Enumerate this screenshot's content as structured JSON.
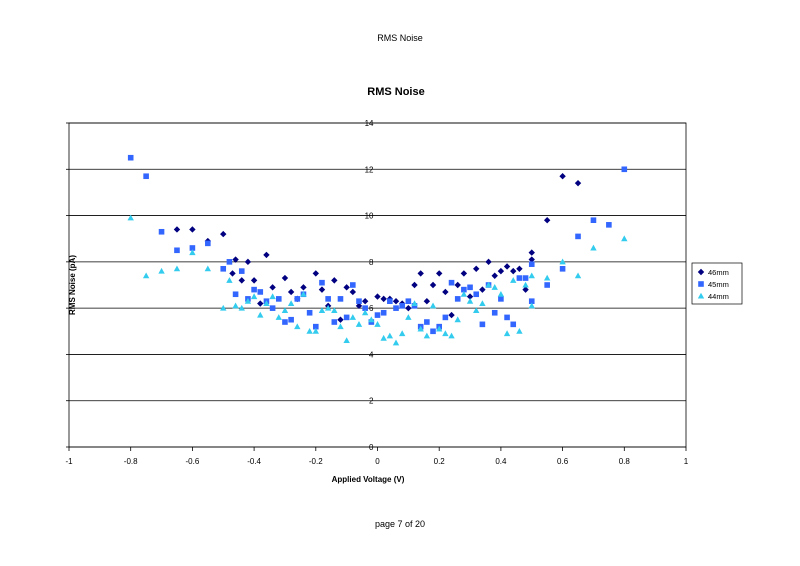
{
  "page": {
    "header": "RMS Noise",
    "footer": "page 7 of 20"
  },
  "chart_data": {
    "type": "scatter",
    "title": "RMS Noise",
    "xlabel": "Applied Voltage (V)",
    "ylabel": "RMS Noise (pA)",
    "xlim": [
      -1,
      1
    ],
    "ylim": [
      0,
      14
    ],
    "xticks": [
      "-1",
      "-0.8",
      "-0.6",
      "-0.4",
      "-0.2",
      "0",
      "0.2",
      "0.4",
      "0.6",
      "0.8",
      "1"
    ],
    "yticks": [
      "0",
      "2",
      "4",
      "6",
      "8",
      "10",
      "12",
      "14"
    ],
    "grid": "horizontal",
    "legend": "right",
    "series": [
      {
        "name": "46mm",
        "marker": "diamond",
        "color": "#000080",
        "points": [
          [
            -0.65,
            9.4
          ],
          [
            -0.6,
            9.4
          ],
          [
            -0.55,
            8.9
          ],
          [
            -0.5,
            9.2
          ],
          [
            -0.46,
            8.1
          ],
          [
            -0.47,
            7.5
          ],
          [
            -0.44,
            7.2
          ],
          [
            -0.42,
            8.0
          ],
          [
            -0.4,
            7.2
          ],
          [
            -0.38,
            6.2
          ],
          [
            -0.36,
            8.3
          ],
          [
            -0.34,
            6.9
          ],
          [
            -0.3,
            7.3
          ],
          [
            -0.28,
            6.7
          ],
          [
            -0.26,
            6.4
          ],
          [
            -0.24,
            6.9
          ],
          [
            -0.2,
            7.5
          ],
          [
            -0.18,
            6.8
          ],
          [
            -0.16,
            6.1
          ],
          [
            -0.14,
            7.2
          ],
          [
            -0.12,
            5.5
          ],
          [
            -0.1,
            6.9
          ],
          [
            -0.08,
            6.7
          ],
          [
            -0.06,
            6.1
          ],
          [
            -0.04,
            6.3
          ],
          [
            0.0,
            6.5
          ],
          [
            0.02,
            6.4
          ],
          [
            0.04,
            6.4
          ],
          [
            0.06,
            6.3
          ],
          [
            0.08,
            6.2
          ],
          [
            0.1,
            6.0
          ],
          [
            0.12,
            7.0
          ],
          [
            0.14,
            7.5
          ],
          [
            0.16,
            6.3
          ],
          [
            0.18,
            7.0
          ],
          [
            0.2,
            7.5
          ],
          [
            0.22,
            6.7
          ],
          [
            0.24,
            5.7
          ],
          [
            0.26,
            7.0
          ],
          [
            0.28,
            7.5
          ],
          [
            0.3,
            6.5
          ],
          [
            0.32,
            7.7
          ],
          [
            0.34,
            6.8
          ],
          [
            0.36,
            8.0
          ],
          [
            0.38,
            7.4
          ],
          [
            0.4,
            7.6
          ],
          [
            0.42,
            7.8
          ],
          [
            0.44,
            7.6
          ],
          [
            0.46,
            7.7
          ],
          [
            0.48,
            6.8
          ],
          [
            0.5,
            8.1
          ],
          [
            0.5,
            8.4
          ],
          [
            0.55,
            9.8
          ],
          [
            0.6,
            11.7
          ],
          [
            0.65,
            11.4
          ]
        ]
      },
      {
        "name": "45mm",
        "marker": "square",
        "color": "#3366ff",
        "points": [
          [
            -0.8,
            12.5
          ],
          [
            -0.75,
            11.7
          ],
          [
            -0.7,
            9.3
          ],
          [
            -0.65,
            8.5
          ],
          [
            -0.6,
            8.6
          ],
          [
            -0.55,
            8.8
          ],
          [
            -0.5,
            7.7
          ],
          [
            -0.48,
            8.0
          ],
          [
            -0.46,
            6.6
          ],
          [
            -0.44,
            7.6
          ],
          [
            -0.42,
            6.4
          ],
          [
            -0.4,
            6.8
          ],
          [
            -0.38,
            6.7
          ],
          [
            -0.36,
            6.3
          ],
          [
            -0.34,
            6.0
          ],
          [
            -0.32,
            6.4
          ],
          [
            -0.3,
            5.4
          ],
          [
            -0.28,
            5.5
          ],
          [
            -0.26,
            6.4
          ],
          [
            -0.24,
            6.6
          ],
          [
            -0.22,
            5.8
          ],
          [
            -0.2,
            5.2
          ],
          [
            -0.18,
            7.1
          ],
          [
            -0.16,
            6.4
          ],
          [
            -0.14,
            5.4
          ],
          [
            -0.12,
            6.4
          ],
          [
            -0.1,
            5.6
          ],
          [
            -0.08,
            7.0
          ],
          [
            -0.06,
            6.3
          ],
          [
            -0.04,
            6.0
          ],
          [
            -0.02,
            5.4
          ],
          [
            0.0,
            5.7
          ],
          [
            0.02,
            5.8
          ],
          [
            0.04,
            6.3
          ],
          [
            0.06,
            6.0
          ],
          [
            0.08,
            6.1
          ],
          [
            0.1,
            6.3
          ],
          [
            0.12,
            6.1
          ],
          [
            0.14,
            5.2
          ],
          [
            0.16,
            5.4
          ],
          [
            0.18,
            5.0
          ],
          [
            0.2,
            5.2
          ],
          [
            0.22,
            5.6
          ],
          [
            0.24,
            7.1
          ],
          [
            0.26,
            6.4
          ],
          [
            0.28,
            6.8
          ],
          [
            0.3,
            6.9
          ],
          [
            0.32,
            6.6
          ],
          [
            0.34,
            5.3
          ],
          [
            0.36,
            7.0
          ],
          [
            0.38,
            5.8
          ],
          [
            0.4,
            6.4
          ],
          [
            0.42,
            5.6
          ],
          [
            0.44,
            5.3
          ],
          [
            0.46,
            7.3
          ],
          [
            0.48,
            7.3
          ],
          [
            0.5,
            7.9
          ],
          [
            0.5,
            6.3
          ],
          [
            0.55,
            7.0
          ],
          [
            0.6,
            7.7
          ],
          [
            0.65,
            9.1
          ],
          [
            0.7,
            9.8
          ],
          [
            0.75,
            9.6
          ],
          [
            0.8,
            12.0
          ]
        ]
      },
      {
        "name": "44mm",
        "marker": "triangle",
        "color": "#33ccee",
        "points": [
          [
            -0.8,
            9.9
          ],
          [
            -0.75,
            7.4
          ],
          [
            -0.7,
            7.6
          ],
          [
            -0.65,
            7.7
          ],
          [
            -0.6,
            8.4
          ],
          [
            -0.55,
            7.7
          ],
          [
            -0.5,
            6.0
          ],
          [
            -0.48,
            7.2
          ],
          [
            -0.46,
            6.1
          ],
          [
            -0.44,
            6.0
          ],
          [
            -0.42,
            6.3
          ],
          [
            -0.4,
            6.5
          ],
          [
            -0.38,
            5.7
          ],
          [
            -0.36,
            6.2
          ],
          [
            -0.34,
            6.5
          ],
          [
            -0.32,
            5.6
          ],
          [
            -0.3,
            5.9
          ],
          [
            -0.28,
            6.2
          ],
          [
            -0.26,
            5.2
          ],
          [
            -0.24,
            6.6
          ],
          [
            -0.22,
            5.0
          ],
          [
            -0.2,
            5.0
          ],
          [
            -0.18,
            5.9
          ],
          [
            -0.16,
            6.0
          ],
          [
            -0.14,
            5.9
          ],
          [
            -0.12,
            5.2
          ],
          [
            -0.1,
            4.6
          ],
          [
            -0.08,
            5.6
          ],
          [
            -0.06,
            5.3
          ],
          [
            -0.04,
            5.8
          ],
          [
            -0.02,
            5.5
          ],
          [
            0.0,
            5.3
          ],
          [
            0.02,
            4.7
          ],
          [
            0.04,
            4.8
          ],
          [
            0.06,
            4.5
          ],
          [
            0.08,
            4.9
          ],
          [
            0.1,
            5.6
          ],
          [
            0.12,
            6.2
          ],
          [
            0.14,
            5.1
          ],
          [
            0.16,
            4.8
          ],
          [
            0.18,
            6.1
          ],
          [
            0.2,
            5.1
          ],
          [
            0.22,
            4.9
          ],
          [
            0.24,
            4.8
          ],
          [
            0.26,
            5.5
          ],
          [
            0.28,
            6.6
          ],
          [
            0.3,
            6.3
          ],
          [
            0.32,
            5.9
          ],
          [
            0.34,
            6.2
          ],
          [
            0.36,
            7.0
          ],
          [
            0.38,
            6.9
          ],
          [
            0.4,
            6.6
          ],
          [
            0.42,
            4.9
          ],
          [
            0.44,
            7.2
          ],
          [
            0.46,
            5.0
          ],
          [
            0.48,
            7.0
          ],
          [
            0.5,
            6.1
          ],
          [
            0.5,
            7.4
          ],
          [
            0.55,
            7.3
          ],
          [
            0.6,
            8.0
          ],
          [
            0.65,
            7.4
          ],
          [
            0.7,
            8.6
          ],
          [
            0.8,
            9.0
          ]
        ]
      }
    ]
  }
}
